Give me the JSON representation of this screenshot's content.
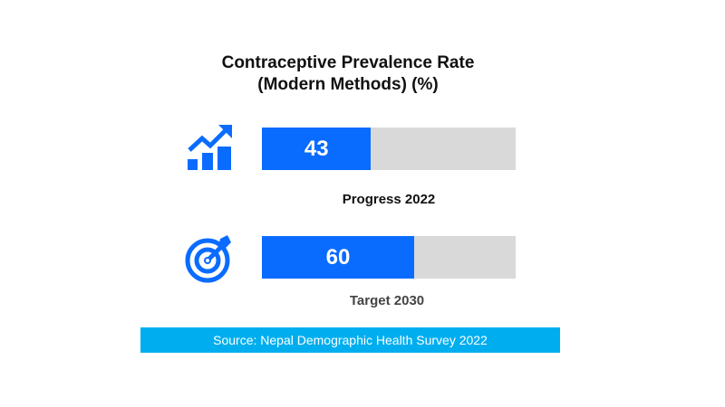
{
  "chart_data": {
    "type": "bar",
    "title_lines": [
      "Contraceptive Prevalence Rate",
      "(Modern Methods) (%)"
    ],
    "categories": [
      "Progress 2022",
      "Target 2030"
    ],
    "values": [
      43,
      60
    ],
    "xlim": [
      0,
      100
    ],
    "grid": false,
    "colors": {
      "fill": "#0a6cff",
      "track": "#d9d9d9"
    },
    "icons": [
      "growth-chart-icon",
      "target-icon"
    ]
  },
  "source": {
    "text": "Source: Nepal Demographic Health Survey 2022",
    "background": "#00aeef"
  }
}
